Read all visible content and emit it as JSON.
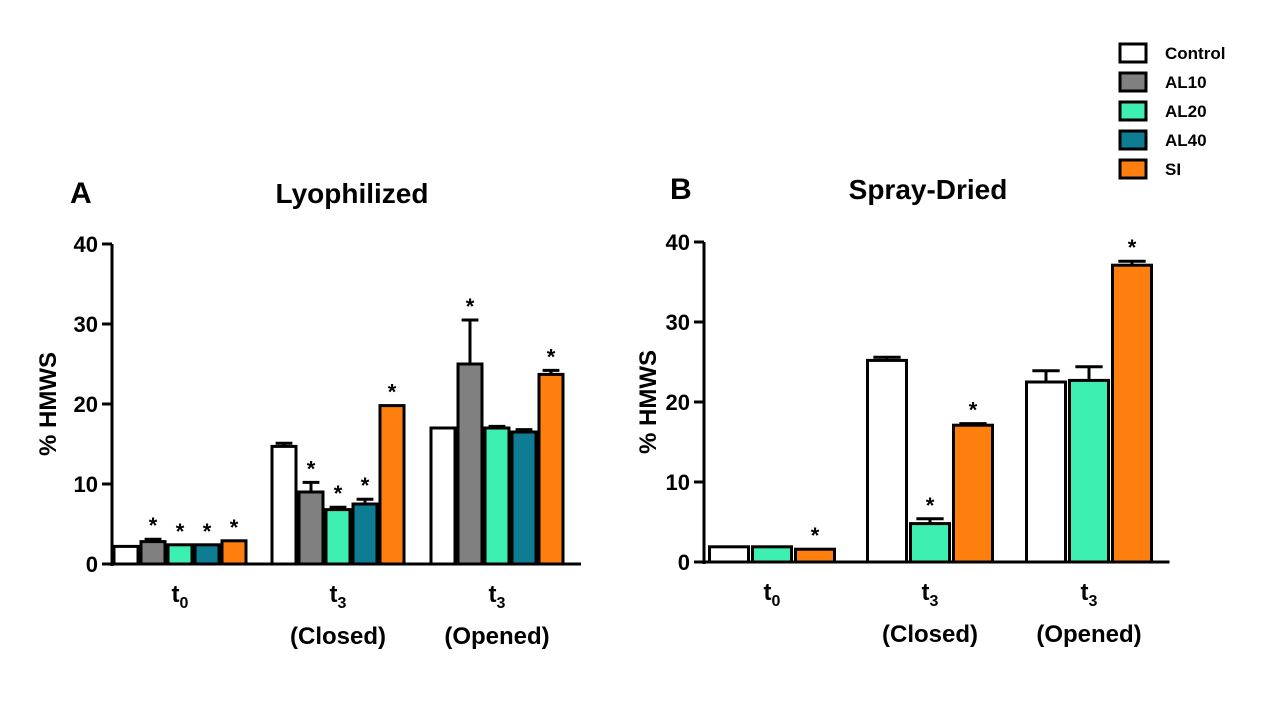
{
  "legend": {
    "position": "top-right",
    "entries": [
      {
        "name": "Control",
        "color": "#ffffff"
      },
      {
        "name": "AL10",
        "color": "#808080"
      },
      {
        "name": "AL20",
        "color": "#3DEFB0"
      },
      {
        "name": "AL40",
        "color": "#0E7C93"
      },
      {
        "name": "SI",
        "color": "#FF7F0E"
      }
    ]
  },
  "chart_data": [
    {
      "type": "bar",
      "panel_letter": "A",
      "title": "Lyophilized",
      "ylabel": "% HMWS",
      "xlabel": "",
      "ylim": [
        0,
        40
      ],
      "yticks": [
        "0",
        "10",
        "20",
        "30",
        "40"
      ],
      "categories": [
        {
          "main": "t",
          "sub": "0",
          "note": ""
        },
        {
          "main": "t",
          "sub": "3",
          "note": "(Closed)"
        },
        {
          "main": "t",
          "sub": "3",
          "note": "(Opened)"
        }
      ],
      "series": [
        {
          "name": "Control",
          "values": [
            2.2,
            14.7,
            17.0
          ],
          "errors": [
            0,
            0.4,
            0
          ],
          "significant": [
            false,
            false,
            false
          ]
        },
        {
          "name": "AL10",
          "values": [
            2.8,
            9.0,
            25.0
          ],
          "errors": [
            0.3,
            1.2,
            5.5
          ],
          "significant": [
            true,
            true,
            true
          ]
        },
        {
          "name": "AL20",
          "values": [
            2.4,
            6.8,
            17.0
          ],
          "errors": [
            0,
            0.3,
            0.2
          ],
          "significant": [
            true,
            true,
            false
          ]
        },
        {
          "name": "AL40",
          "values": [
            2.4,
            7.5,
            16.5
          ],
          "errors": [
            0,
            0.6,
            0.3
          ],
          "significant": [
            true,
            true,
            false
          ]
        },
        {
          "name": "SI",
          "values": [
            2.9,
            19.8,
            23.7
          ],
          "errors": [
            0,
            0,
            0.5
          ],
          "significant": [
            true,
            true,
            true
          ]
        }
      ]
    },
    {
      "type": "bar",
      "panel_letter": "B",
      "title": "Spray-Dried",
      "ylabel": "% HMWS",
      "xlabel": "",
      "ylim": [
        0,
        40
      ],
      "yticks": [
        "0",
        "10",
        "20",
        "30",
        "40"
      ],
      "categories": [
        {
          "main": "t",
          "sub": "0",
          "note": ""
        },
        {
          "main": "t",
          "sub": "3",
          "note": "(Closed)"
        },
        {
          "main": "t",
          "sub": "3",
          "note": "(Opened)"
        }
      ],
      "series": [
        {
          "name": "Control",
          "values": [
            1.9,
            25.2,
            22.5
          ],
          "errors": [
            0,
            0.4,
            1.4
          ],
          "significant": [
            false,
            false,
            false
          ]
        },
        {
          "name": "AL20",
          "values": [
            1.9,
            4.8,
            22.7
          ],
          "errors": [
            0,
            0.6,
            1.7
          ],
          "significant": [
            false,
            true,
            false
          ]
        },
        {
          "name": "SI",
          "values": [
            1.6,
            17.1,
            37.1
          ],
          "errors": [
            0,
            0.2,
            0.5
          ],
          "significant": [
            true,
            true,
            true
          ]
        }
      ]
    }
  ]
}
